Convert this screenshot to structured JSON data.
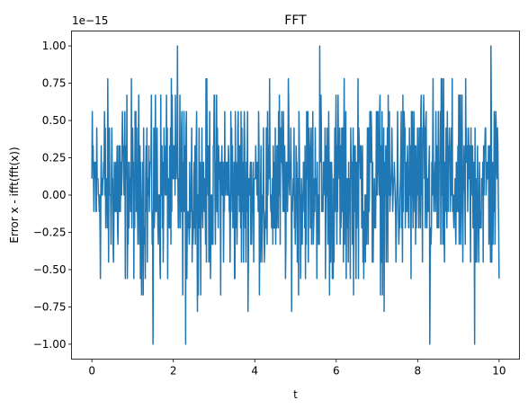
{
  "chart_data": {
    "type": "line",
    "title": "FFT",
    "xlabel": "t",
    "ylabel": "Error x - ifft(fft(x))",
    "offset_text": "1e−15",
    "xlim": [
      -0.5,
      10.5
    ],
    "ylim": [
      -1.1,
      1.1
    ],
    "x_ticks": [
      0,
      2,
      4,
      6,
      8,
      10
    ],
    "x_tick_labels": [
      "0",
      "2",
      "4",
      "6",
      "8",
      "10"
    ],
    "y_ticks": [
      -1.0,
      -0.75,
      -0.5,
      -0.25,
      0.0,
      0.25,
      0.5,
      0.75,
      1.0
    ],
    "y_tick_labels": [
      "−1.00",
      "−0.75",
      "−0.50",
      "−0.25",
      "0.00",
      "0.25",
      "0.50",
      "0.75",
      "1.00"
    ],
    "grid": false,
    "series": [
      {
        "color": "#1f77b4",
        "x_range": [
          0,
          10
        ],
        "n_points": 1000,
        "value_scale": "1e-15",
        "envelope_values": [
          -1.0,
          -0.78,
          -0.67,
          -0.56,
          -0.45,
          -0.33,
          -0.22,
          -0.11,
          0.0,
          0.11,
          0.22,
          0.33,
          0.45,
          0.56,
          0.67,
          0.78,
          0.89,
          1.0
        ],
        "extreme_points": [
          {
            "x": 1.5,
            "y": -1.0
          },
          {
            "x": 2.1,
            "y": 1.0
          },
          {
            "x": 2.3,
            "y": -1.0
          },
          {
            "x": 5.6,
            "y": -1.0
          },
          {
            "x": 5.6,
            "y": 1.0
          },
          {
            "x": 8.3,
            "y": -1.0
          },
          {
            "x": 9.4,
            "y": -1.0
          },
          {
            "x": 9.8,
            "y": 1.0
          }
        ]
      }
    ]
  }
}
